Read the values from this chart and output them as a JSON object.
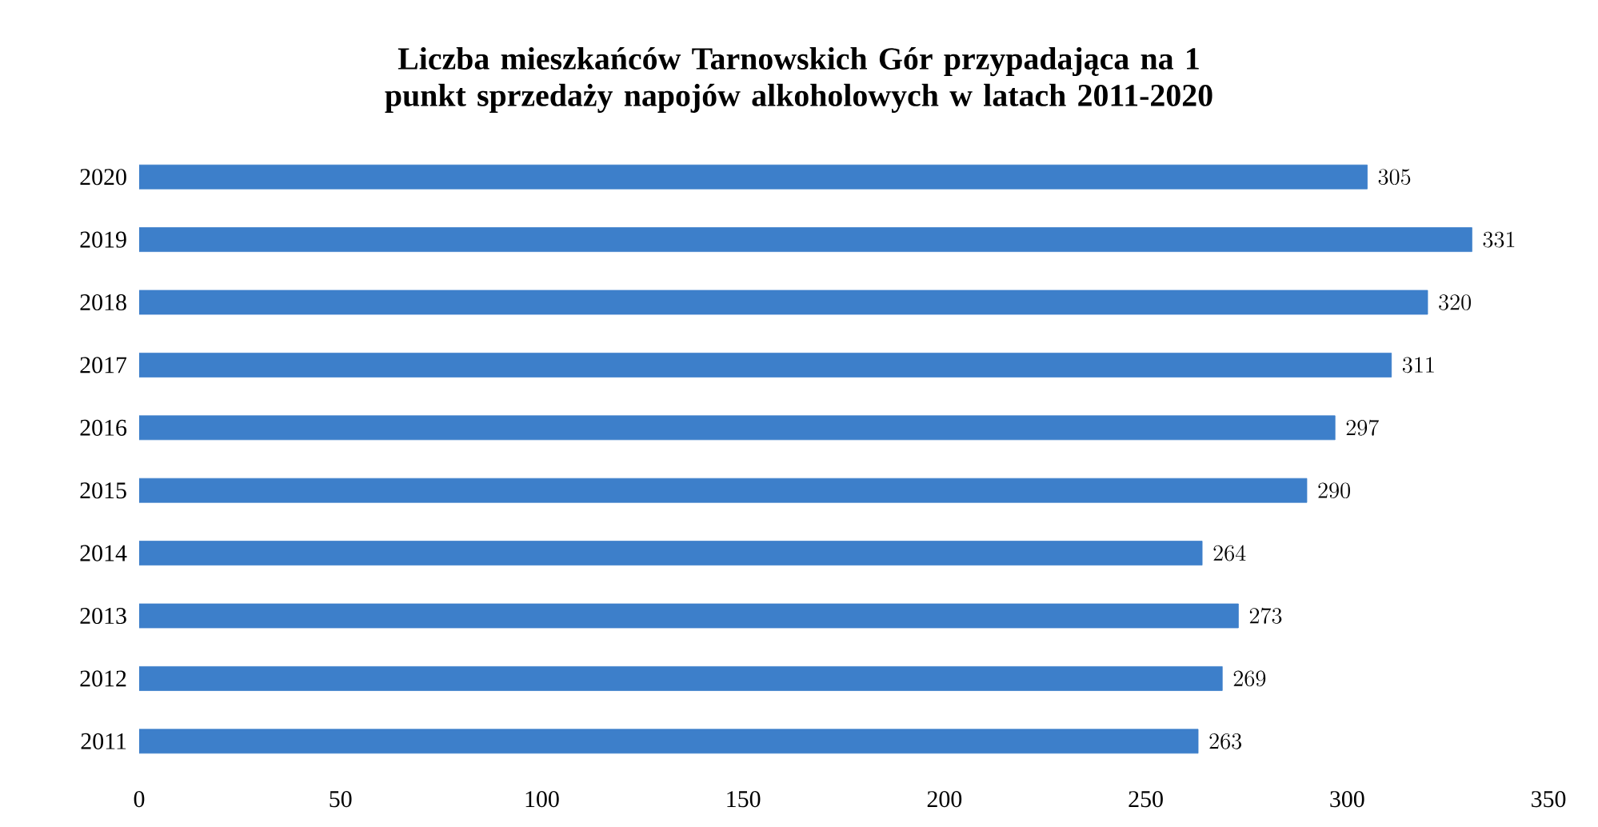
{
  "chart_data": {
    "type": "bar",
    "orientation": "horizontal",
    "title": "Liczba mieszkańców Tarnowskich Gór przypadająca na 1 punkt sprzedaży napojów alkoholowych w latach 2011-2020",
    "categories": [
      "2020",
      "2019",
      "2018",
      "2017",
      "2016",
      "2015",
      "2014",
      "2013",
      "2012",
      "2011"
    ],
    "values": [
      305,
      331,
      320,
      311,
      297,
      290,
      264,
      273,
      269,
      263
    ],
    "color": "#3d7fca",
    "xlim": [
      0,
      350
    ],
    "xticks": [
      0,
      50,
      100,
      150,
      200,
      250,
      300,
      350
    ],
    "grid": false,
    "data_labels": true
  }
}
